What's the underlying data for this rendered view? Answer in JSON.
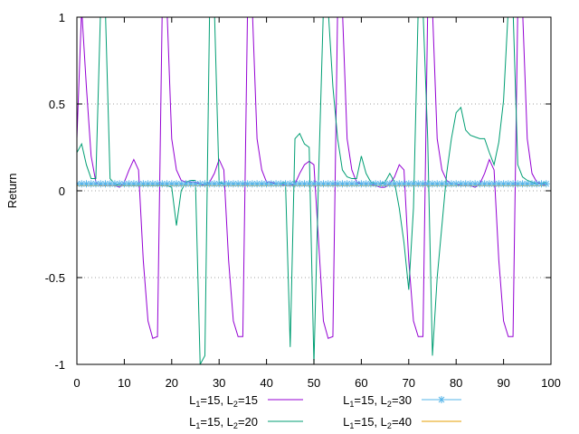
{
  "chart_data": {
    "type": "line",
    "ylabel": "Return",
    "xlim": [
      0,
      100
    ],
    "ylim": [
      -1,
      1
    ],
    "grid": "horizontal dotted at y=-0.5, 0, 0.5",
    "legend_position": "bottom",
    "x_ticks": [
      {
        "value": 0,
        "label": "0"
      },
      {
        "value": 10,
        "label": "10"
      },
      {
        "value": 20,
        "label": "20"
      },
      {
        "value": 30,
        "label": "30"
      },
      {
        "value": 40,
        "label": "40"
      },
      {
        "value": 50,
        "label": "50"
      },
      {
        "value": 60,
        "label": "60"
      },
      {
        "value": 70,
        "label": "70"
      },
      {
        "value": 80,
        "label": "80"
      },
      {
        "value": 90,
        "label": "90"
      },
      {
        "value": 100,
        "label": "100"
      }
    ],
    "y_ticks": [
      {
        "value": 1,
        "label": "1"
      },
      {
        "value": 0.5,
        "label": "0.5"
      },
      {
        "value": 0,
        "label": "0"
      },
      {
        "value": -0.5,
        "label": "-0.5"
      },
      {
        "value": -1,
        "label": "-1"
      }
    ],
    "series": [
      {
        "name": "L1=15, L2=15",
        "label_parts": [
          "L",
          "1",
          "=15, L",
          "2",
          "=15"
        ],
        "color": "#9400d3",
        "style": "line",
        "points": [
          [
            0,
            0.3
          ],
          [
            1,
            1.05
          ],
          [
            2,
            0.6
          ],
          [
            3,
            0.2
          ],
          [
            4,
            0.05
          ],
          [
            5,
            0.03
          ],
          [
            6,
            0.03
          ],
          [
            7,
            0.03
          ],
          [
            8,
            0.03
          ],
          [
            9,
            0.02
          ],
          [
            10,
            0.05
          ],
          [
            11,
            0.12
          ],
          [
            12,
            0.18
          ],
          [
            13,
            0.12
          ],
          [
            14,
            -0.4
          ],
          [
            15,
            -0.75
          ],
          [
            16,
            -0.85
          ],
          [
            17,
            -0.84
          ],
          [
            18,
            1.05
          ],
          [
            19,
            1.05
          ],
          [
            20,
            0.3
          ],
          [
            21,
            0.12
          ],
          [
            22,
            0.06
          ],
          [
            23,
            0.05
          ],
          [
            24,
            0.05
          ],
          [
            25,
            0.05
          ],
          [
            26,
            0.04
          ],
          [
            27,
            0.03
          ],
          [
            28,
            0.05
          ],
          [
            29,
            0.1
          ],
          [
            30,
            0.18
          ],
          [
            31,
            0.12
          ],
          [
            32,
            -0.4
          ],
          [
            33,
            -0.75
          ],
          [
            34,
            -0.84
          ],
          [
            35,
            -0.84
          ],
          [
            36,
            1.05
          ],
          [
            37,
            1.05
          ],
          [
            38,
            0.3
          ],
          [
            39,
            0.12
          ],
          [
            40,
            0.05
          ],
          [
            41,
            0.05
          ],
          [
            42,
            0.04
          ],
          [
            43,
            0.04
          ],
          [
            44,
            0.03
          ],
          [
            45,
            0.03
          ],
          [
            46,
            0.04
          ],
          [
            47,
            0.1
          ],
          [
            48,
            0.15
          ],
          [
            49,
            0.17
          ],
          [
            50,
            0.15
          ],
          [
            51,
            -0.3
          ],
          [
            52,
            -0.75
          ],
          [
            53,
            -0.85
          ],
          [
            54,
            -0.84
          ],
          [
            55,
            1.05
          ],
          [
            56,
            1.05
          ],
          [
            57,
            0.3
          ],
          [
            58,
            0.12
          ],
          [
            59,
            0.05
          ],
          [
            60,
            0.04
          ],
          [
            61,
            0.04
          ],
          [
            62,
            0.04
          ],
          [
            63,
            0.03
          ],
          [
            64,
            0.02
          ],
          [
            65,
            0.02
          ],
          [
            66,
            0.04
          ],
          [
            67,
            0.08
          ],
          [
            68,
            0.15
          ],
          [
            69,
            0.12
          ],
          [
            70,
            -0.4
          ],
          [
            71,
            -0.75
          ],
          [
            72,
            -0.84
          ],
          [
            73,
            -0.84
          ],
          [
            74,
            1.05
          ],
          [
            75,
            1.05
          ],
          [
            76,
            0.3
          ],
          [
            77,
            0.12
          ],
          [
            78,
            0.06
          ],
          [
            79,
            0.04
          ],
          [
            80,
            0.04
          ],
          [
            81,
            0.03
          ],
          [
            82,
            0.03
          ],
          [
            83,
            0.03
          ],
          [
            84,
            0.02
          ],
          [
            85,
            0.04
          ],
          [
            86,
            0.1
          ],
          [
            87,
            0.18
          ],
          [
            88,
            0.12
          ],
          [
            89,
            -0.4
          ],
          [
            90,
            -0.75
          ],
          [
            91,
            -0.84
          ],
          [
            92,
            -0.84
          ],
          [
            93,
            1.05
          ],
          [
            94,
            1.05
          ],
          [
            95,
            0.3
          ],
          [
            96,
            0.1
          ],
          [
            97,
            0.05
          ],
          [
            98,
            0.04
          ],
          [
            99,
            0.03
          ]
        ]
      },
      {
        "name": "L1=15, L2=20",
        "label_parts": [
          "L",
          "1",
          "=15, L",
          "2",
          "=20"
        ],
        "color": "#009e73",
        "style": "line",
        "points": [
          [
            0,
            0.22
          ],
          [
            1,
            0.27
          ],
          [
            2,
            0.15
          ],
          [
            3,
            0.07
          ],
          [
            4,
            0.07
          ],
          [
            5,
            1.05
          ],
          [
            6,
            1.05
          ],
          [
            7,
            0.07
          ],
          [
            8,
            0.04
          ],
          [
            9,
            0.03
          ],
          [
            10,
            0.03
          ],
          [
            11,
            0.03
          ],
          [
            12,
            0.03
          ],
          [
            13,
            0.03
          ],
          [
            14,
            0.03
          ],
          [
            15,
            0.03
          ],
          [
            16,
            0.03
          ],
          [
            17,
            0.03
          ],
          [
            18,
            0.03
          ],
          [
            19,
            0.03
          ],
          [
            20,
            0.02
          ],
          [
            21,
            -0.2
          ],
          [
            22,
            0.0
          ],
          [
            23,
            0.05
          ],
          [
            24,
            0.06
          ],
          [
            25,
            0.06
          ],
          [
            26,
            -1.0
          ],
          [
            27,
            -0.95
          ],
          [
            28,
            1.05
          ],
          [
            29,
            1.05
          ],
          [
            30,
            0.05
          ],
          [
            31,
            0.04
          ],
          [
            32,
            0.04
          ],
          [
            33,
            0.04
          ],
          [
            34,
            0.04
          ],
          [
            35,
            0.04
          ],
          [
            36,
            0.04
          ],
          [
            37,
            0.04
          ],
          [
            38,
            0.04
          ],
          [
            39,
            0.04
          ],
          [
            40,
            0.04
          ],
          [
            41,
            0.04
          ],
          [
            42,
            0.04
          ],
          [
            43,
            0.04
          ],
          [
            44,
            0.05
          ],
          [
            45,
            -0.9
          ],
          [
            46,
            0.3
          ],
          [
            47,
            0.33
          ],
          [
            48,
            0.27
          ],
          [
            49,
            0.25
          ],
          [
            50,
            -1.0
          ],
          [
            51,
            0.1
          ],
          [
            52,
            1.05
          ],
          [
            53,
            1.05
          ],
          [
            54,
            0.6
          ],
          [
            55,
            0.3
          ],
          [
            56,
            0.12
          ],
          [
            57,
            0.08
          ],
          [
            58,
            0.07
          ],
          [
            59,
            0.07
          ],
          [
            60,
            0.2
          ],
          [
            61,
            0.1
          ],
          [
            62,
            0.05
          ],
          [
            63,
            0.04
          ],
          [
            64,
            0.04
          ],
          [
            65,
            0.05
          ],
          [
            66,
            0.1
          ],
          [
            67,
            0.05
          ],
          [
            68,
            -0.1
          ],
          [
            69,
            -0.3
          ],
          [
            70,
            -0.57
          ],
          [
            71,
            -0.1
          ],
          [
            72,
            1.05
          ],
          [
            73,
            1.05
          ],
          [
            74,
            0.3
          ],
          [
            75,
            -0.95
          ],
          [
            76,
            -0.5
          ],
          [
            77,
            -0.2
          ],
          [
            78,
            0.1
          ],
          [
            79,
            0.3
          ],
          [
            80,
            0.45
          ],
          [
            81,
            0.48
          ],
          [
            82,
            0.35
          ],
          [
            83,
            0.32
          ],
          [
            84,
            0.31
          ],
          [
            85,
            0.3
          ],
          [
            86,
            0.3
          ],
          [
            87,
            0.22
          ],
          [
            88,
            0.15
          ],
          [
            89,
            0.28
          ],
          [
            90,
            0.52
          ],
          [
            91,
            1.05
          ],
          [
            92,
            1.05
          ],
          [
            93,
            0.15
          ],
          [
            94,
            0.08
          ],
          [
            95,
            0.06
          ],
          [
            96,
            0.05
          ],
          [
            97,
            0.04
          ],
          [
            98,
            0.04
          ],
          [
            99,
            0.05
          ]
        ]
      },
      {
        "name": "L1=15, L2=30",
        "label_parts": [
          "L",
          "1",
          "=15, L",
          "2",
          "=30"
        ],
        "color": "#56b4e9",
        "style": "linespoints",
        "points": [
          [
            0,
            0.04
          ],
          [
            1,
            0.04
          ],
          [
            2,
            0.04
          ],
          [
            3,
            0.04
          ],
          [
            4,
            0.04
          ],
          [
            5,
            0.04
          ],
          [
            6,
            0.04
          ],
          [
            7,
            0.04
          ],
          [
            8,
            0.04
          ],
          [
            9,
            0.04
          ],
          [
            10,
            0.04
          ],
          [
            11,
            0.04
          ],
          [
            12,
            0.04
          ],
          [
            13,
            0.04
          ],
          [
            14,
            0.04
          ],
          [
            15,
            0.04
          ],
          [
            16,
            0.04
          ],
          [
            17,
            0.04
          ],
          [
            18,
            0.04
          ],
          [
            19,
            0.04
          ],
          [
            20,
            0.04
          ],
          [
            21,
            0.04
          ],
          [
            22,
            0.04
          ],
          [
            23,
            0.04
          ],
          [
            24,
            0.04
          ],
          [
            25,
            0.04
          ],
          [
            26,
            0.04
          ],
          [
            27,
            0.04
          ],
          [
            28,
            0.04
          ],
          [
            29,
            0.04
          ],
          [
            30,
            0.04
          ],
          [
            31,
            0.04
          ],
          [
            32,
            0.04
          ],
          [
            33,
            0.04
          ],
          [
            34,
            0.04
          ],
          [
            35,
            0.04
          ],
          [
            36,
            0.04
          ],
          [
            37,
            0.04
          ],
          [
            38,
            0.04
          ],
          [
            39,
            0.04
          ],
          [
            40,
            0.04
          ],
          [
            41,
            0.04
          ],
          [
            42,
            0.04
          ],
          [
            43,
            0.04
          ],
          [
            44,
            0.04
          ],
          [
            45,
            0.04
          ],
          [
            46,
            0.04
          ],
          [
            47,
            0.04
          ],
          [
            48,
            0.04
          ],
          [
            49,
            0.04
          ],
          [
            50,
            0.04
          ],
          [
            51,
            0.04
          ],
          [
            52,
            0.04
          ],
          [
            53,
            0.04
          ],
          [
            54,
            0.04
          ],
          [
            55,
            0.04
          ],
          [
            56,
            0.04
          ],
          [
            57,
            0.04
          ],
          [
            58,
            0.04
          ],
          [
            59,
            0.04
          ],
          [
            60,
            0.04
          ],
          [
            61,
            0.04
          ],
          [
            62,
            0.04
          ],
          [
            63,
            0.04
          ],
          [
            64,
            0.04
          ],
          [
            65,
            0.04
          ],
          [
            66,
            0.04
          ],
          [
            67,
            0.04
          ],
          [
            68,
            0.04
          ],
          [
            69,
            0.04
          ],
          [
            70,
            0.04
          ],
          [
            71,
            0.04
          ],
          [
            72,
            0.04
          ],
          [
            73,
            0.04
          ],
          [
            74,
            0.04
          ],
          [
            75,
            0.04
          ],
          [
            76,
            0.04
          ],
          [
            77,
            0.04
          ],
          [
            78,
            0.04
          ],
          [
            79,
            0.04
          ],
          [
            80,
            0.04
          ],
          [
            81,
            0.04
          ],
          [
            82,
            0.04
          ],
          [
            83,
            0.04
          ],
          [
            84,
            0.04
          ],
          [
            85,
            0.04
          ],
          [
            86,
            0.04
          ],
          [
            87,
            0.04
          ],
          [
            88,
            0.04
          ],
          [
            89,
            0.04
          ],
          [
            90,
            0.04
          ],
          [
            91,
            0.04
          ],
          [
            92,
            0.04
          ],
          [
            93,
            0.04
          ],
          [
            94,
            0.04
          ],
          [
            95,
            0.04
          ],
          [
            96,
            0.04
          ],
          [
            97,
            0.04
          ],
          [
            98,
            0.04
          ],
          [
            99,
            0.04
          ]
        ]
      },
      {
        "name": "L1=15, L2=40",
        "label_parts": [
          "L",
          "1",
          "=15, L",
          "2",
          "=40"
        ],
        "color": "#e69f00",
        "style": "line",
        "points": [
          [
            0,
            0.03
          ],
          [
            99,
            0.03
          ]
        ]
      }
    ]
  }
}
